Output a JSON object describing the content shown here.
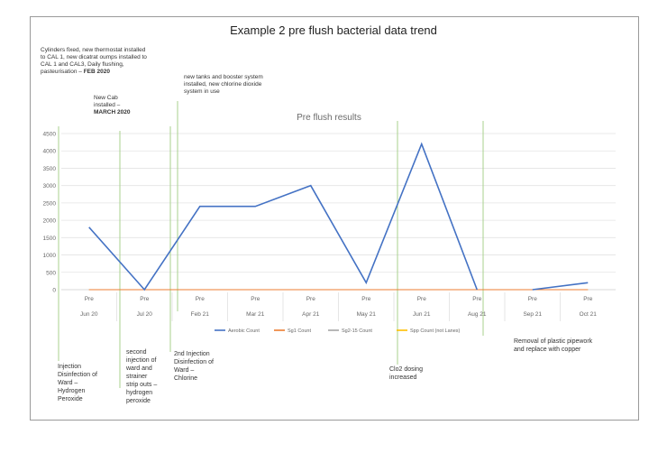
{
  "title": "Example 2 pre flush bacterial data trend",
  "chart_data": {
    "type": "line",
    "title": "Pre flush results",
    "categories": [
      "Jun 20",
      "Jul 20",
      "Feb 21",
      "Mar 21",
      "Apr 21",
      "May 21",
      "Jun 21",
      "Aug 21",
      "Sep 21",
      "Oct 21"
    ],
    "category_prefix": "Pre",
    "ylim": [
      0,
      4500
    ],
    "yticks": [
      "0",
      "500",
      "1000",
      "1500",
      "2000",
      "2500",
      "3000",
      "3500",
      "4000",
      "4500"
    ],
    "grid": true,
    "legend_position": "bottom",
    "series": [
      {
        "name": "Aerobic Count",
        "color": "#4472c4",
        "values": [
          1800,
          0,
          2400,
          2400,
          3000,
          200,
          4200,
          0,
          null,
          null
        ],
        "tail": [
          [
            8,
            0
          ],
          [
            9,
            200
          ]
        ]
      },
      {
        "name": "Sg1 Count",
        "color": "#ed7d31",
        "values": [
          0,
          0,
          0,
          0,
          0,
          0,
          0,
          0,
          0,
          0
        ]
      },
      {
        "name": "Sg2-15 Count",
        "color": "#a5a5a5",
        "values": [
          0,
          0,
          0,
          0,
          0,
          0,
          0,
          0,
          0,
          0
        ]
      },
      {
        "name": "Spp Count (not Lanes)",
        "color": "#ffc000",
        "values": [
          0,
          0,
          0,
          0,
          0,
          0,
          0,
          0,
          0,
          0
        ]
      }
    ]
  },
  "annotations": {
    "top": [
      {
        "text": "Cylinders fixed, new thermostat installed to CAL 1, new dicatrat oumps installed to CAL 1 and CAL3, Daily flushing, pasteurisation –",
        "bold": "FEB 2020"
      },
      {
        "text": "New Cab installed –",
        "bold": "MARCH 2020"
      },
      {
        "text": "new tanks and booster system installed, new chlorine dioxide system in use",
        "bold": ""
      }
    ],
    "bottom": [
      {
        "text": "Injection Disinfection of Ward – Hydrogen Peroxide"
      },
      {
        "text": "second injection of ward and strainer strip outs – hydrogen peroxide"
      },
      {
        "text": "2nd Injection Disinfection of Ward – Chlorine"
      },
      {
        "text": "Clo2 dosing increased"
      },
      {
        "text": "Removal of plastic pipework and replace with copper"
      }
    ]
  }
}
